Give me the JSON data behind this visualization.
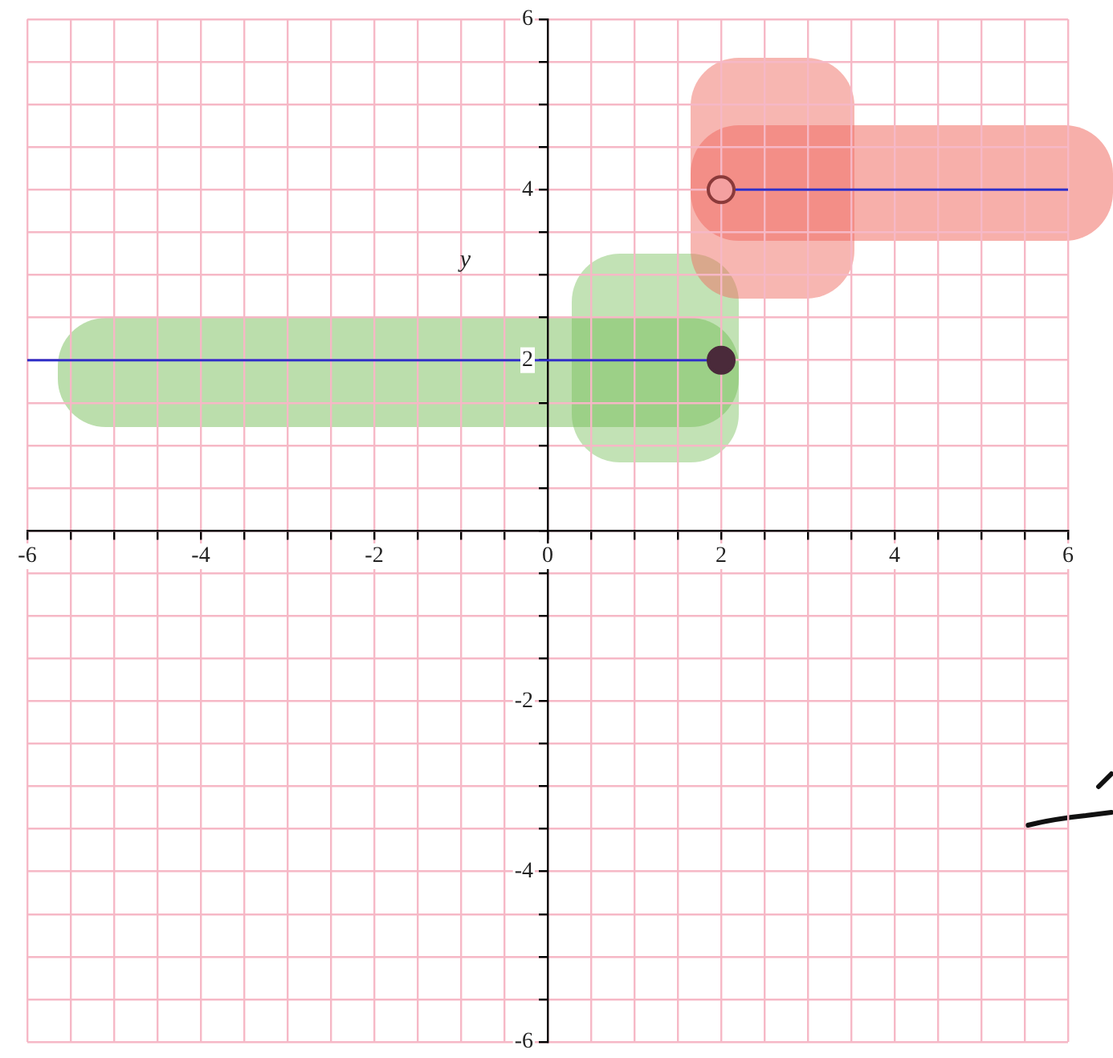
{
  "chart_data": {
    "type": "line",
    "ylabel": "y",
    "xlim": [
      -6,
      6
    ],
    "ylim": [
      -6,
      6
    ],
    "xticks": [
      -6,
      {
        "value": -5.5,
        "label": null
      },
      {
        "value": -5,
        "label": null
      },
      {
        "value": -4.5,
        "label": null
      },
      -4,
      {
        "value": -3.5,
        "label": null
      },
      {
        "value": -3,
        "label": null
      },
      {
        "value": -2.5,
        "label": null
      },
      -2,
      {
        "value": -1.5,
        "label": null
      },
      {
        "value": -1,
        "label": null
      },
      {
        "value": -0.5,
        "label": null
      },
      0,
      {
        "value": 0.5,
        "label": null
      },
      {
        "value": 1,
        "label": null
      },
      {
        "value": 1.5,
        "label": null
      },
      2,
      {
        "value": 2.5,
        "label": null
      },
      {
        "value": 3,
        "label": null
      },
      {
        "value": 3.5,
        "label": null
      },
      4,
      {
        "value": 4.5,
        "label": null
      },
      {
        "value": 5,
        "label": null
      },
      {
        "value": 5.5,
        "label": null
      },
      6
    ],
    "yticks": [
      -6,
      {
        "value": -5.5,
        "label": null
      },
      {
        "value": -5,
        "label": null
      },
      {
        "value": -4.5,
        "label": null
      },
      -4,
      {
        "value": -3.5,
        "label": null
      },
      {
        "value": -3,
        "label": null
      },
      {
        "value": -2.5,
        "label": null
      },
      -2,
      {
        "value": -1.5,
        "label": null
      },
      {
        "value": -1,
        "label": null
      },
      {
        "value": -0.5,
        "label": null
      },
      {
        "value": 0,
        "label": null
      },
      {
        "value": 0.5,
        "label": null
      },
      {
        "value": 1,
        "label": null
      },
      {
        "value": 1.5,
        "label": null
      },
      2,
      {
        "value": 2.5,
        "label": null
      },
      {
        "value": 3,
        "label": null
      },
      {
        "value": 3.5,
        "label": null
      },
      4,
      {
        "value": 4.5,
        "label": null
      },
      {
        "value": 5,
        "label": null
      },
      {
        "value": 5.5,
        "label": null
      },
      6
    ],
    "grid": true,
    "legend": false,
    "line_style": "solid",
    "series": [
      {
        "color": "#3030c8",
        "x": [
          -6,
          2
        ],
        "values": [
          2,
          2
        ],
        "marker": "none"
      },
      {
        "color": "#3030c8",
        "x": [
          2,
          6
        ],
        "values": [
          4,
          4
        ],
        "marker": "none"
      },
      {
        "type": "scatter",
        "color": "#4a2a3a",
        "x": [
          2
        ],
        "values": [
          2
        ],
        "marker": "circle"
      },
      {
        "type": "scatter",
        "color": "#8b3a3a",
        "colors": [
          "#f4a0a0"
        ],
        "x": [
          2
        ],
        "values": [
          4
        ],
        "marker": "circle"
      }
    ]
  }
}
